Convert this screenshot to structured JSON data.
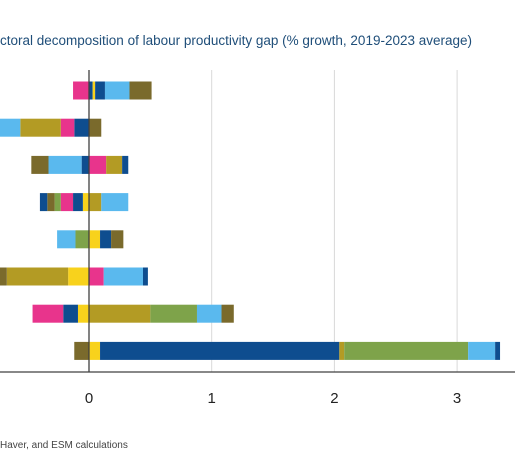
{
  "title": "ctoral decomposition of labour productivity gap (% growth, 2019-2023 average)",
  "source": "Haver, and ESM calculations",
  "chart_data": {
    "type": "bar",
    "orientation": "horizontal",
    "stacked": true,
    "title": "ctoral decomposition of labour productivity gap (% growth, 2019-2023 average)",
    "x_ticks": [
      0,
      1,
      2,
      3
    ],
    "xlim": [
      -0.73,
      3.45
    ],
    "grid": true,
    "rows": [
      {
        "segments": [
          {
            "color": "#e8348c",
            "value": -0.13
          },
          {
            "color": "#0e4d8f",
            "value": 0.03
          },
          {
            "color": "#f8d21c",
            "value": 0.02
          },
          {
            "color": "#0e4d8f",
            "value": 0.08
          },
          {
            "color": "#5ab9ee",
            "value": 0.2
          },
          {
            "color": "#7a6a2c",
            "value": 0.18
          }
        ]
      },
      {
        "segments": [
          {
            "color": "#0e4d8f",
            "value": -0.12
          },
          {
            "color": "#e8348c",
            "value": -0.11
          },
          {
            "color": "#b39b24",
            "value": -0.33
          },
          {
            "color": "#5ab9ee",
            "value": -0.19
          },
          {
            "color": "#7a6a2c",
            "value": 0.1
          }
        ]
      },
      {
        "segments": [
          {
            "color": "#0e4d8f",
            "value": -0.06
          },
          {
            "color": "#5ab9ee",
            "value": -0.27
          },
          {
            "color": "#7a6a2c",
            "value": -0.14
          },
          {
            "color": "#e8348c",
            "value": 0.14
          },
          {
            "color": "#b39b24",
            "value": 0.13
          },
          {
            "color": "#0e4d8f",
            "value": 0.05
          }
        ]
      },
      {
        "segments": [
          {
            "color": "#f8d21c",
            "value": -0.05
          },
          {
            "color": "#0e4d8f",
            "value": -0.08
          },
          {
            "color": "#e8348c",
            "value": -0.1
          },
          {
            "color": "#7ea34a",
            "value": -0.05
          },
          {
            "color": "#7a6a2c",
            "value": -0.06
          },
          {
            "color": "#0e4d8f",
            "value": -0.06
          },
          {
            "color": "#b39b24",
            "value": 0.1
          },
          {
            "color": "#5ab9ee",
            "value": 0.22
          }
        ]
      },
      {
        "segments": [
          {
            "color": "#7ea34a",
            "value": -0.11
          },
          {
            "color": "#5ab9ee",
            "value": -0.15
          },
          {
            "color": "#f8d21c",
            "value": 0.09
          },
          {
            "color": "#0e4d8f",
            "value": 0.09
          },
          {
            "color": "#7a6a2c",
            "value": 0.1
          }
        ]
      },
      {
        "segments": [
          {
            "color": "#f8d21c",
            "value": -0.17
          },
          {
            "color": "#b39b24",
            "value": -0.5
          },
          {
            "color": "#7a6a2c",
            "value": -0.06
          },
          {
            "color": "#e8348c",
            "value": 0.12
          },
          {
            "color": "#5ab9ee",
            "value": 0.32
          },
          {
            "color": "#0e4d8f",
            "value": 0.04
          }
        ]
      },
      {
        "segments": [
          {
            "color": "#f8d21c",
            "value": -0.09
          },
          {
            "color": "#0e4d8f",
            "value": -0.12
          },
          {
            "color": "#e8348c",
            "value": -0.25
          },
          {
            "color": "#b39b24",
            "value": 0.5
          },
          {
            "color": "#7ea34a",
            "value": 0.38
          },
          {
            "color": "#5ab9ee",
            "value": 0.2
          },
          {
            "color": "#7a6a2c",
            "value": 0.1
          }
        ]
      },
      {
        "segments": [
          {
            "color": "#7a6a2c",
            "value": -0.12
          },
          {
            "color": "#f8d21c",
            "value": 0.09
          },
          {
            "color": "#0e4d8f",
            "value": 1.95
          },
          {
            "color": "#b39b24",
            "value": 0.04
          },
          {
            "color": "#7ea34a",
            "value": 1.01
          },
          {
            "color": "#5ab9ee",
            "value": 0.22
          },
          {
            "color": "#0e4d8f",
            "value": 0.04
          }
        ]
      }
    ]
  }
}
